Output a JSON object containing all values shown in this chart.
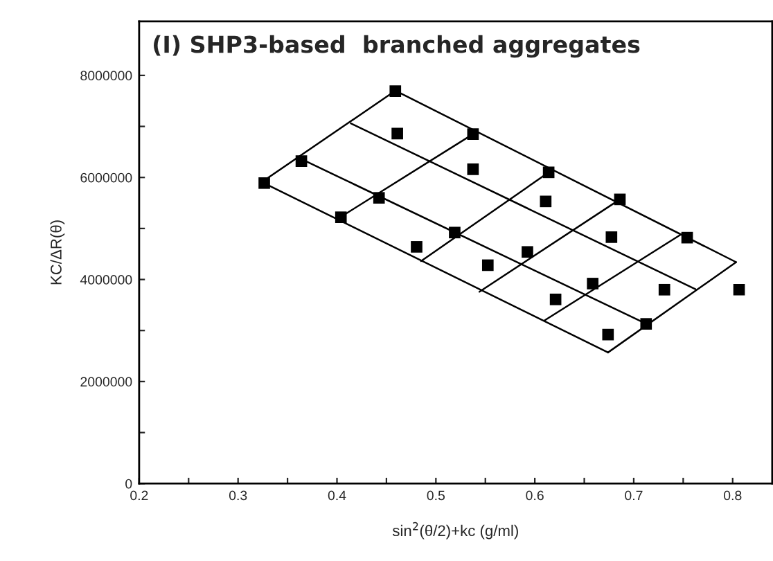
{
  "chart_data": {
    "type": "scatter",
    "title": "(I) SHP3-based  branched aggregates",
    "xlabel": "sin$^{2}$(θ/2)+kc (g/ml)",
    "ylabel": "KC/ΔR(θ)",
    "xlim": [
      0.2,
      0.84
    ],
    "ylim": [
      0,
      9060000
    ],
    "xticks": [
      {
        "value": 0.2,
        "label": "0.2"
      },
      {
        "value": 0.25,
        "label": null
      },
      {
        "value": 0.3,
        "label": "0.3"
      },
      {
        "value": 0.35,
        "label": null
      },
      {
        "value": 0.4,
        "label": "0.4"
      },
      {
        "value": 0.45,
        "label": null
      },
      {
        "value": 0.5,
        "label": "0.5"
      },
      {
        "value": 0.55,
        "label": null
      },
      {
        "value": 0.6,
        "label": "0.6"
      },
      {
        "value": 0.65,
        "label": null
      },
      {
        "value": 0.7,
        "label": "0.7"
      },
      {
        "value": 0.75,
        "label": null
      },
      {
        "value": 0.8,
        "label": "0.8"
      }
    ],
    "yticks": [
      0,
      {
        "value": 1000000,
        "label": null
      },
      2000000,
      {
        "value": 3000000,
        "label": null
      },
      4000000,
      {
        "value": 5000000,
        "label": null
      },
      6000000,
      {
        "value": 7000000,
        "label": null
      },
      8000000
    ],
    "grid": false,
    "legend": false,
    "series": [
      {
        "marker": "square",
        "color": "#000000",
        "x": [
          0.3265,
          0.364,
          0.404,
          0.4425,
          0.459,
          0.461,
          0.4805,
          0.519,
          0.5375,
          0.5375,
          0.5525,
          0.5925,
          0.611,
          0.614,
          0.621,
          0.6585,
          0.674,
          0.6775,
          0.686,
          0.7125,
          0.731,
          0.754,
          0.8065
        ],
        "values": [
          5890000,
          6320000,
          5220000,
          5600000,
          7690000,
          6860000,
          4640000,
          4920000,
          6850000,
          6160000,
          4280000,
          4540000,
          5530000,
          6100000,
          3610000,
          3920000,
          2920000,
          4830000,
          5570000,
          3130000,
          3800000,
          4820000,
          3800000
        ]
      },
      {
        "type": "line",
        "marker": "none",
        "line_style": "solid",
        "color": "#000000",
        "x": [
          0.324,
          0.674
        ],
        "values": [
          5910000,
          2570000
        ]
      },
      {
        "type": "line",
        "marker": "none",
        "line_style": "solid",
        "color": "#000000",
        "x": [
          0.364,
          0.715
        ],
        "values": [
          6360000,
          3110000
        ]
      },
      {
        "type": "line",
        "marker": "none",
        "line_style": "solid",
        "color": "#000000",
        "x": [
          0.414,
          0.7625
        ],
        "values": [
          7060000,
          3810000
        ]
      },
      {
        "type": "line",
        "marker": "none",
        "line_style": "solid",
        "color": "#000000",
        "x": [
          0.459,
          0.8035
        ],
        "values": [
          7700000,
          4340000
        ]
      },
      {
        "type": "line",
        "marker": "none",
        "line_style": "solid",
        "color": "#000000",
        "x": [
          0.324,
          0.459
        ],
        "values": [
          5910000,
          7700000
        ]
      },
      {
        "type": "line",
        "marker": "none",
        "line_style": "solid",
        "color": "#000000",
        "x": [
          0.4,
          0.5375
        ],
        "values": [
          5180000,
          6850000
        ]
      },
      {
        "type": "line",
        "marker": "none",
        "line_style": "solid",
        "color": "#000000",
        "x": [
          0.485,
          0.614
        ],
        "values": [
          4360000,
          6100000
        ]
      },
      {
        "type": "line",
        "marker": "none",
        "line_style": "solid",
        "color": "#000000",
        "x": [
          0.544,
          0.686
        ],
        "values": [
          3760000,
          5570000
        ]
      },
      {
        "type": "line",
        "marker": "none",
        "line_style": "solid",
        "color": "#000000",
        "x": [
          0.61,
          0.7475
        ],
        "values": [
          3200000,
          4880000
        ]
      },
      {
        "type": "line",
        "marker": "none",
        "line_style": "solid",
        "color": "#000000",
        "x": [
          0.674,
          0.8035
        ],
        "values": [
          2570000,
          4340000
        ]
      }
    ]
  }
}
